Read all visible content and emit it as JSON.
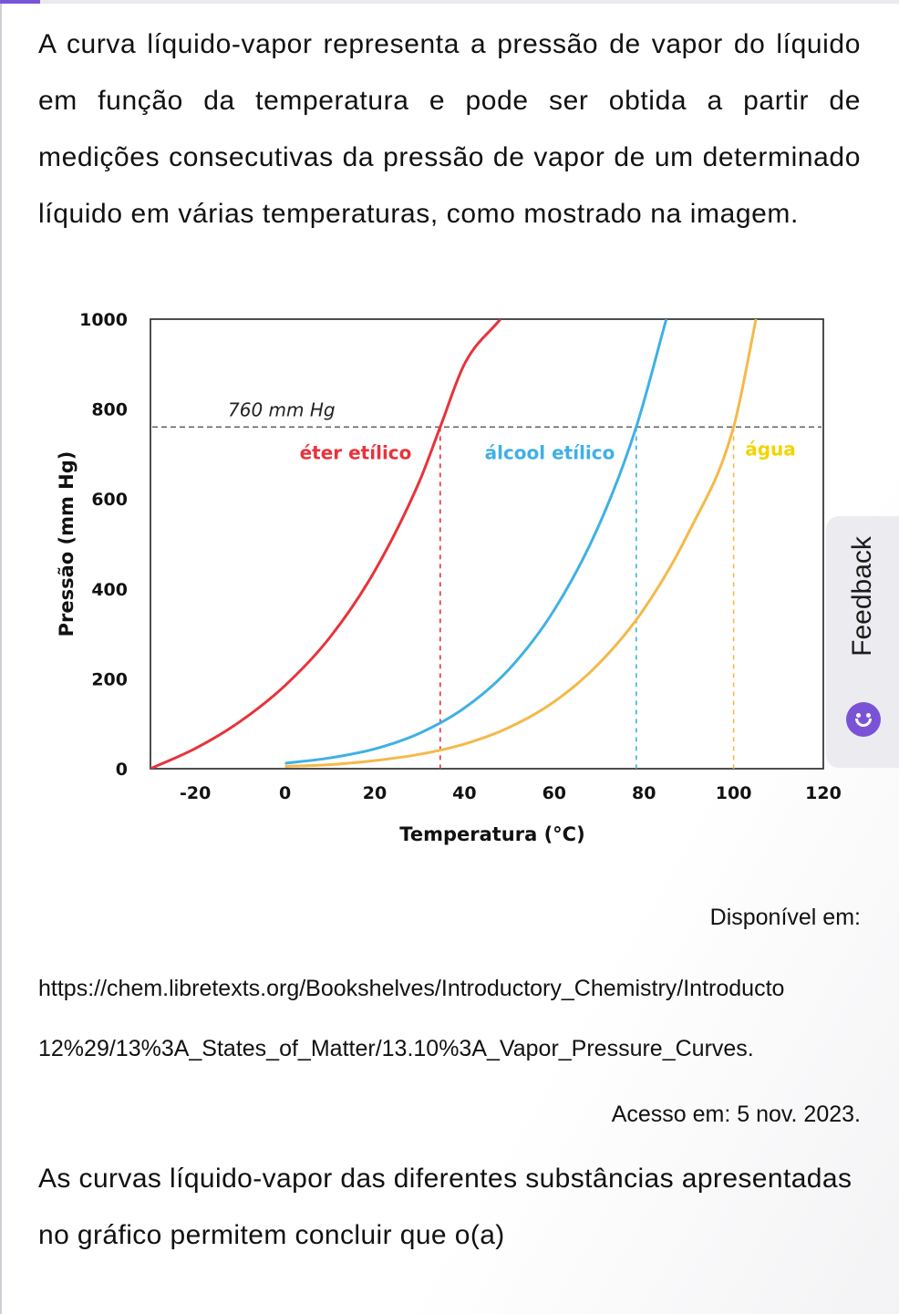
{
  "intro_text": "A curva líquido-vapor representa a pressão de vapor do líquido em função da temperatura e pode ser obtida a partir de medições consecutivas da pressão de vapor de um determinado líquido em várias temperaturas, como mostrado na imagem.",
  "chart_data": {
    "type": "line",
    "xlabel": "Temperatura (°C)",
    "ylabel": "Pressão (mm Hg)",
    "xlim": [
      -30,
      120
    ],
    "ylim": [
      0,
      1000
    ],
    "xticks": [
      "-20",
      "0",
      "20",
      "40",
      "60",
      "80",
      "100",
      "120"
    ],
    "yticks": [
      "0",
      "200",
      "400",
      "600",
      "800",
      "1000"
    ],
    "grid": false,
    "reference_line": {
      "y": 760,
      "label": "760 mm Hg"
    },
    "series": [
      {
        "name": "éter etílico",
        "color": "#e8333a",
        "boiling_point": 34.6,
        "x": [
          -30,
          -20,
          -10,
          0,
          10,
          20,
          30,
          34.6,
          40,
          48
        ],
        "y": [
          0,
          45,
          105,
          185,
          292,
          440,
          640,
          760,
          900,
          1000
        ]
      },
      {
        "name": "álcool etílico",
        "color": "#3fb0e6",
        "boiling_point": 78.3,
        "x": [
          0,
          10,
          20,
          30,
          40,
          50,
          60,
          70,
          78.3,
          85
        ],
        "y": [
          12,
          24,
          44,
          79,
          135,
          222,
          353,
          542,
          760,
          1000
        ]
      },
      {
        "name": "água",
        "color": "#f4b94a",
        "boiling_point": 100,
        "x": [
          0,
          10,
          20,
          30,
          40,
          50,
          60,
          70,
          80,
          90,
          100,
          105
        ],
        "y": [
          5,
          9,
          18,
          32,
          55,
          92,
          149,
          234,
          355,
          526,
          760,
          1000
        ]
      }
    ]
  },
  "source": {
    "prefix": "Disponível em:",
    "url_line1": "https://chem.libretexts.org/Bookshelves/Introductory_Chemistry/Introducto",
    "url_line2": "12%29/13%3A_States_of_Matter/13.10%3A_Vapor_Pressure_Curves.",
    "access": "Acesso em: 5 nov. 2023."
  },
  "question_text": "As curvas líquido-vapor das diferentes substâncias apresentadas no gráfico permitem concluir que o(a)",
  "feedback": {
    "label": "Feedback",
    "icon": "smiley-icon",
    "accent": "#7a52d6"
  }
}
